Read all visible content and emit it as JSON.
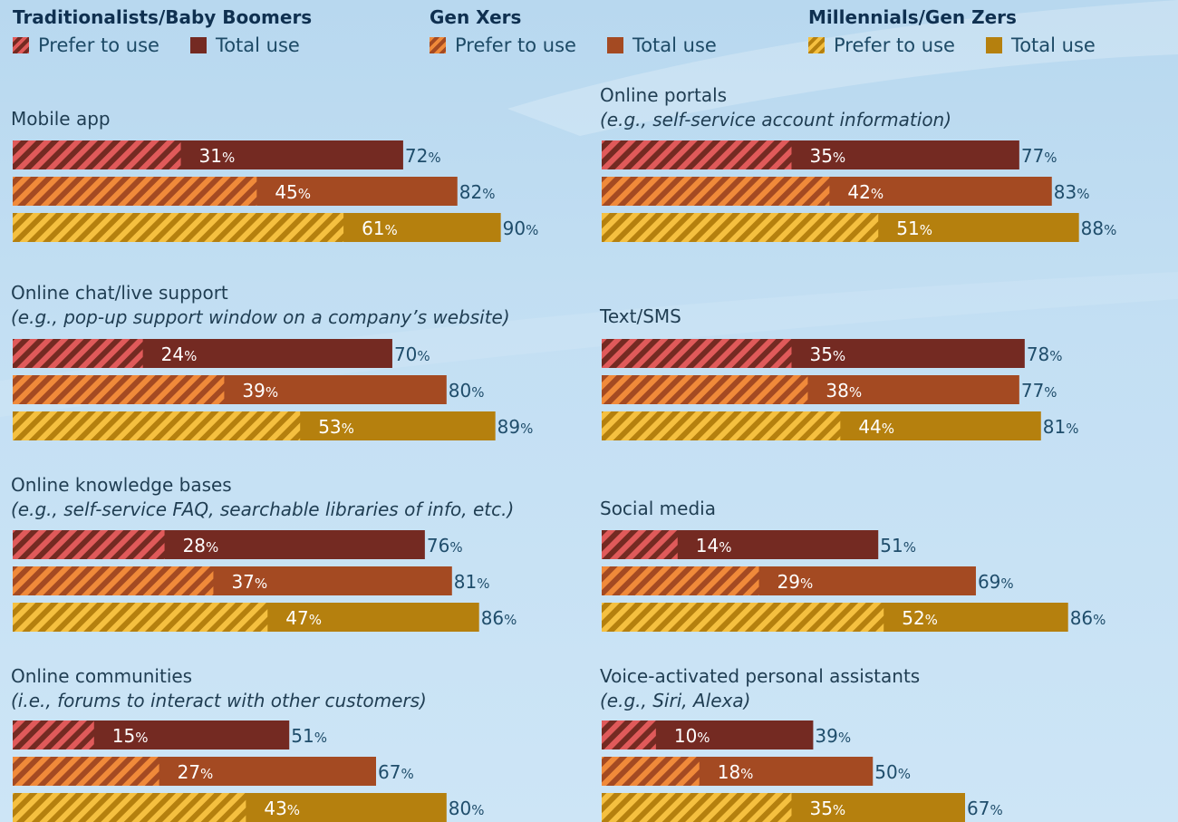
{
  "legend": {
    "prefer_label": "Prefer to use",
    "total_label": "Total use",
    "groups": [
      {
        "name": "Traditionalists/Baby Boomers",
        "total_color": "#742a22",
        "prefer_color": "#e05a5a"
      },
      {
        "name": "Gen Xers",
        "total_color": "#a44a22",
        "prefer_color": "#f08a3a"
      },
      {
        "name": "Millennials/Gen Zers",
        "total_color": "#b5800e",
        "prefer_color": "#f5c040"
      }
    ]
  },
  "chart_data": {
    "type": "bar",
    "orientation": "horizontal",
    "unit": "%",
    "xlim": [
      0,
      100
    ],
    "series": [
      {
        "name": "Traditionalists/Baby Boomers"
      },
      {
        "name": "Gen Xers"
      },
      {
        "name": "Millennials/Gen Zers"
      }
    ],
    "measures": [
      "Prefer to use",
      "Total use"
    ],
    "panels": [
      {
        "title": "Mobile app",
        "note": "",
        "prefer": [
          31,
          45,
          61
        ],
        "total": [
          72,
          82,
          90
        ]
      },
      {
        "title": "Online portals",
        "note": "(e.g., self-service account information)",
        "prefer": [
          35,
          42,
          51
        ],
        "total": [
          77,
          83,
          88
        ]
      },
      {
        "title": "Online chat/live support",
        "note": "(e.g., pop-up support window on a company’s website)",
        "prefer": [
          24,
          39,
          53
        ],
        "total": [
          70,
          80,
          89
        ]
      },
      {
        "title": "Text/SMS",
        "note": "",
        "prefer": [
          35,
          38,
          44
        ],
        "total": [
          78,
          77,
          81
        ]
      },
      {
        "title": "Online knowledge bases",
        "note": "(e.g., self-service FAQ, searchable libraries of info, etc.)",
        "prefer": [
          28,
          37,
          47
        ],
        "total": [
          76,
          81,
          86
        ]
      },
      {
        "title": "Social media",
        "note": "",
        "prefer": [
          14,
          29,
          52
        ],
        "total": [
          51,
          69,
          86
        ]
      },
      {
        "title": "Online communities",
        "note": "(i.e., forums to interact with other customers)",
        "prefer": [
          15,
          27,
          43
        ],
        "total": [
          51,
          67,
          80
        ]
      },
      {
        "title": "Voice-activated personal assistants",
        "note": "(e.g., Siri, Alexa)",
        "prefer": [
          10,
          18,
          35
        ],
        "total": [
          39,
          50,
          67
        ]
      }
    ]
  }
}
